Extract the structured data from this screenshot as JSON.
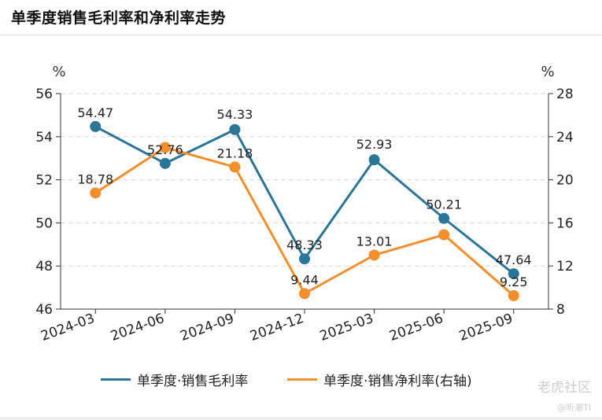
{
  "header": {
    "title": "单季度销售毛利率和净利率走势"
  },
  "colors": {
    "gross": "#2b7599",
    "net": "#f28e2b",
    "grid": "#d9d9d9",
    "axis": "#333333"
  },
  "chart_data": {
    "type": "line",
    "categories": [
      "2024-03",
      "2024-06",
      "2024-09",
      "2024-12",
      "2025-03",
      "2025-06",
      "2025-09"
    ],
    "series": [
      {
        "name": "单季度·销售毛利率",
        "axis": "left",
        "values": [
          54.47,
          52.76,
          54.33,
          48.33,
          52.93,
          50.21,
          47.64
        ],
        "labels": [
          "54.47",
          "52.76",
          "54.33",
          "48.33",
          "52.93",
          "50.21",
          "47.64"
        ]
      },
      {
        "name": "单季度·销售净利率(右轴)",
        "axis": "right",
        "values": [
          18.78,
          23.0,
          21.18,
          9.44,
          13.01,
          14.9,
          9.25
        ],
        "labels": [
          "18.78",
          "",
          "21.18",
          "9.44",
          "13.01",
          "",
          "9.25"
        ]
      }
    ],
    "ylabel_left": "%",
    "ylabel_right": "%",
    "ylim_left": [
      46,
      56
    ],
    "yticks_left": [
      "46",
      "48",
      "50",
      "52",
      "54",
      "56"
    ],
    "ylim_right": [
      8,
      28
    ],
    "yticks_right": [
      "8",
      "12",
      "16",
      "20",
      "24",
      "28"
    ],
    "grid": true,
    "legend_position": "bottom"
  },
  "watermark": {
    "brand": "老虎社区",
    "handle": "@听潮TI"
  }
}
